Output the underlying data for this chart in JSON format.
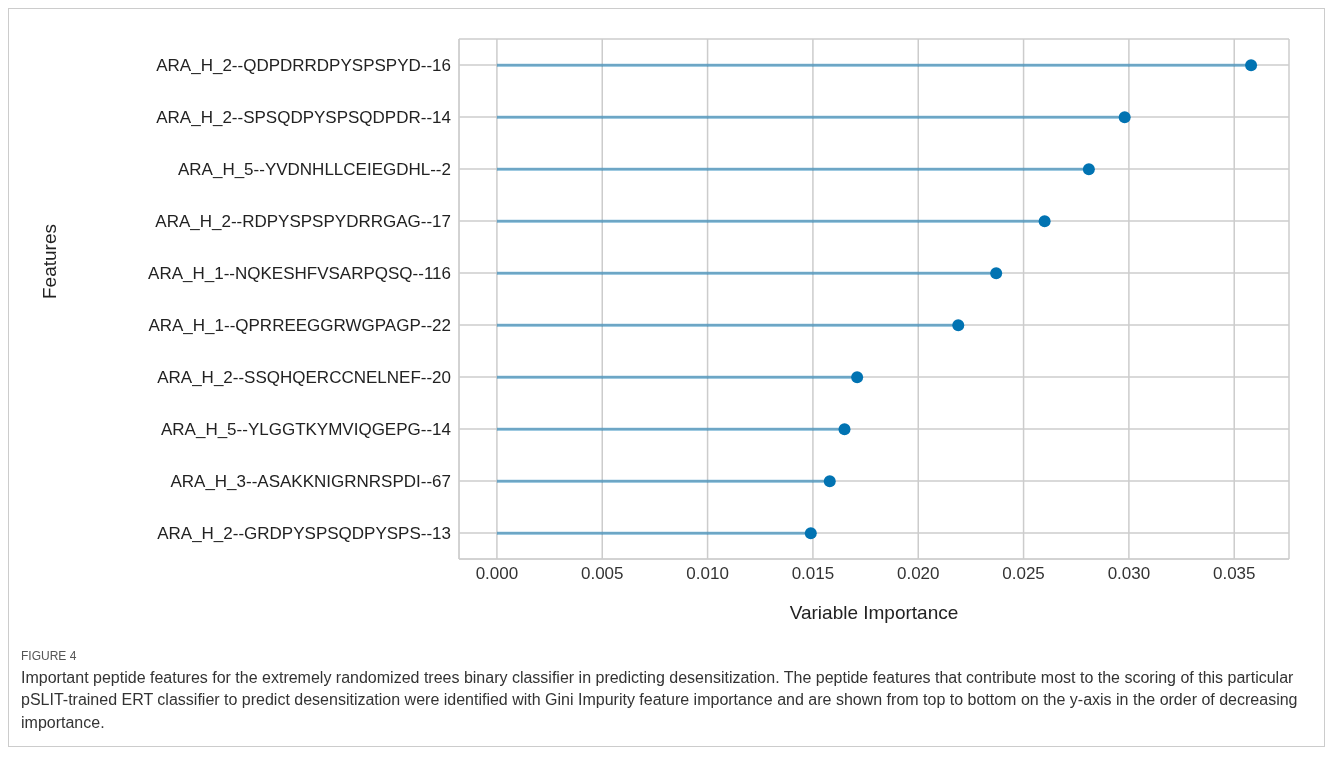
{
  "chart_data": {
    "type": "lollipop",
    "orientation": "horizontal",
    "categories": [
      "ARA_H_2--QDPDRRDPYSPSPYD--16",
      "ARA_H_2--SPSQDPYSPSQDPDR--14",
      "ARA_H_5--YVDNHLLCEIEGDHL--2",
      "ARA_H_2--RDPYSPSPYDRRGAG--17",
      "ARA_H_1--NQKESHFVSARPQSQ--116",
      "ARA_H_1--QPRREEGGRWGPAGP--22",
      "ARA_H_2--SSQHQERCCNELNEF--20",
      "ARA_H_5--YLGGTKYMVIQGEPG--14",
      "ARA_H_3--ASAKKNIGRNRSPDI--67",
      "ARA_H_2--GRDPYSPSQDPYSPS--13"
    ],
    "values": [
      0.0358,
      0.0298,
      0.0281,
      0.026,
      0.0237,
      0.0219,
      0.0171,
      0.0165,
      0.0158,
      0.0149
    ],
    "color": "#0173b2",
    "xlim": [
      -0.0018,
      0.0376
    ],
    "xticks": [
      {
        "value": 0,
        "label": "0.000"
      },
      {
        "value": 0.005,
        "label": "0.005"
      },
      {
        "value": 0.01,
        "label": "0.010"
      },
      {
        "value": 0.015,
        "label": "0.015"
      },
      {
        "value": 0.02,
        "label": "0.020"
      },
      {
        "value": 0.025,
        "label": "0.025"
      },
      {
        "value": 0.03,
        "label": "0.030"
      },
      {
        "value": 0.035,
        "label": "0.035"
      }
    ],
    "xlabel": "Variable Importance",
    "ylabel": "Features",
    "grid": true,
    "marker": "circle",
    "annotations": [
      "FIGURE 4",
      "Important peptide features for the extremely randomized trees binary classifier in predicting desensitization. The peptide features that contribute most to the scoring of this particular pSLIT-trained ERT classifier to predict desensitization were identified with Gini Impurity feature importance and are shown from top to bottom on the y-axis in the order of decreasing importance."
    ]
  }
}
